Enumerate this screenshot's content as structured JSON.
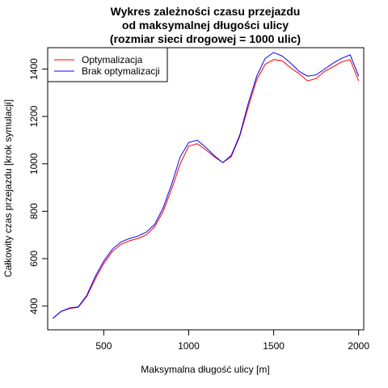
{
  "chart_data": {
    "type": "line",
    "title_lines": [
      "Wykres zależności czasu przejazdu",
      "od maksymalnej długości ulicy",
      "(rozmiar sieci drogowej = 1000 ulic)"
    ],
    "xlabel": "Maksymalna długość ulicy [m]",
    "ylabel": "Całkowity czas przejazdu [krok symulacji]",
    "xlim": [
      170,
      2030
    ],
    "ylim": [
      300,
      1490
    ],
    "x_ticks": [
      500,
      1000,
      1500,
      2000
    ],
    "y_ticks": [
      400,
      600,
      800,
      1000,
      1200,
      1400
    ],
    "grid": false,
    "legend_position": "top-left",
    "x": [
      200,
      250,
      300,
      350,
      400,
      450,
      500,
      550,
      600,
      650,
      700,
      750,
      800,
      850,
      900,
      950,
      1000,
      1050,
      1100,
      1150,
      1200,
      1250,
      1300,
      1350,
      1400,
      1450,
      1500,
      1550,
      1600,
      1650,
      1700,
      1750,
      1800,
      1850,
      1900,
      1950,
      2000
    ],
    "series": [
      {
        "name": "Optymalizacja",
        "color": "#ff0000",
        "values": [
          348,
          378,
          390,
          395,
          440,
          515,
          580,
          630,
          660,
          675,
          685,
          700,
          735,
          800,
          895,
          1000,
          1075,
          1085,
          1060,
          1030,
          1005,
          1030,
          1115,
          1240,
          1355,
          1420,
          1440,
          1435,
          1405,
          1380,
          1350,
          1360,
          1390,
          1410,
          1430,
          1440,
          1350
        ]
      },
      {
        "name": "Brak optymalizacji",
        "color": "#0000ff",
        "values": [
          348,
          378,
          392,
          397,
          445,
          525,
          590,
          640,
          670,
          685,
          695,
          712,
          745,
          815,
          915,
          1030,
          1090,
          1100,
          1070,
          1035,
          1005,
          1035,
          1120,
          1255,
          1370,
          1445,
          1470,
          1455,
          1425,
          1390,
          1370,
          1375,
          1400,
          1425,
          1445,
          1460,
          1370
        ]
      }
    ]
  }
}
